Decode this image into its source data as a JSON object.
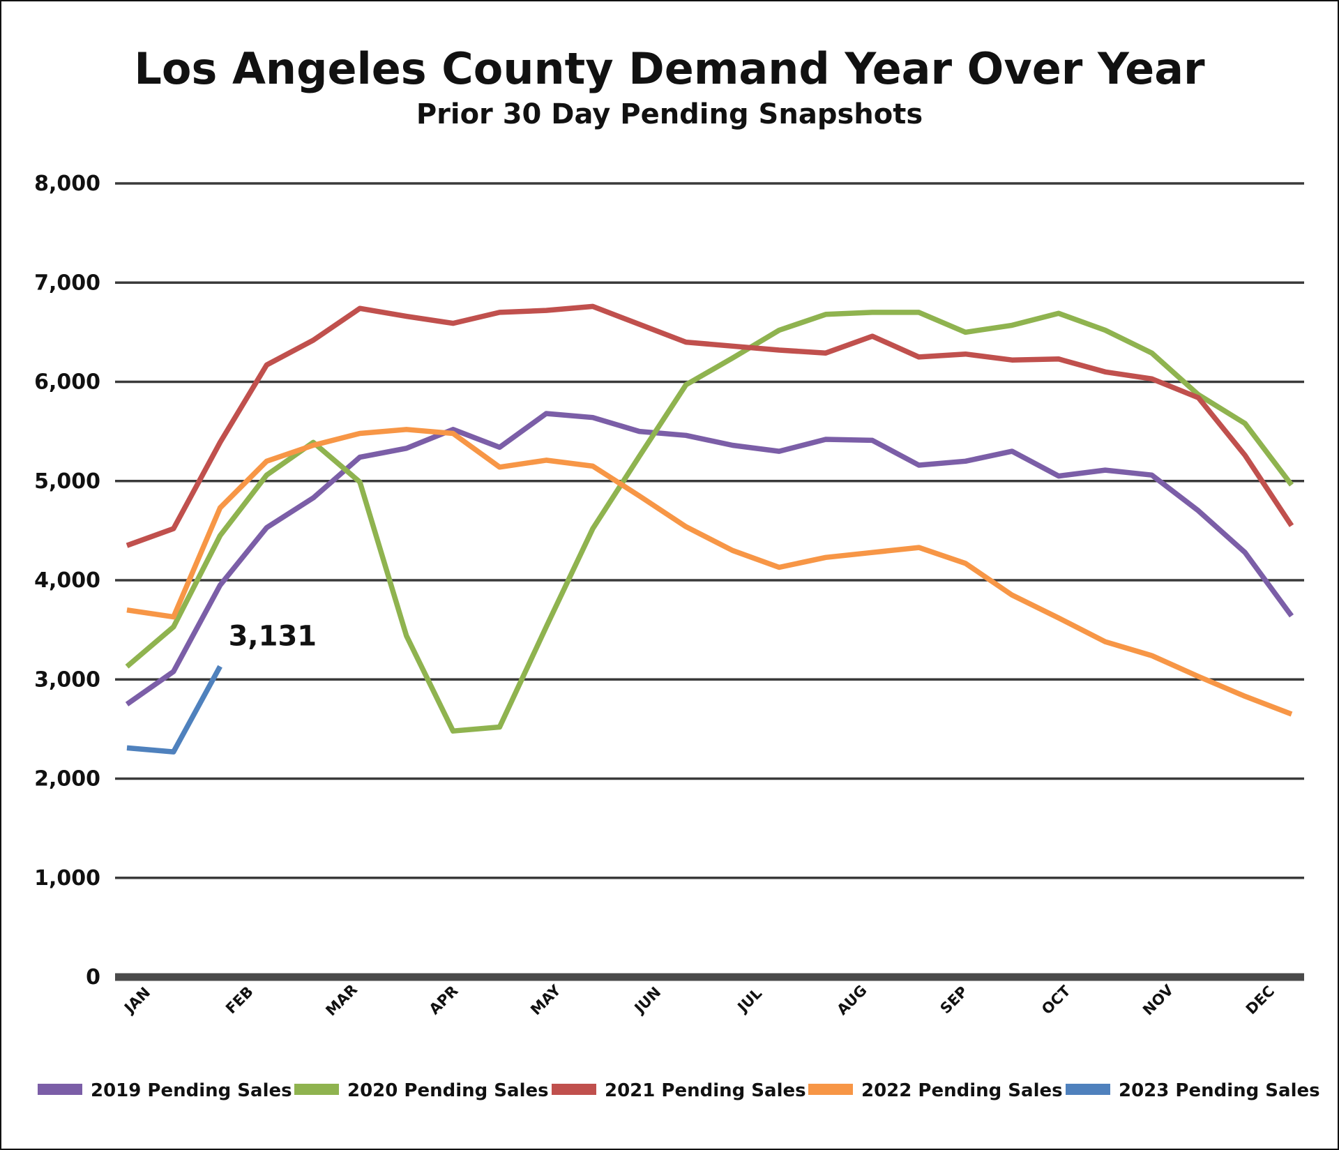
{
  "chart_data": {
    "type": "line",
    "title": "Los Angeles County Demand Year Over Year",
    "subtitle": "Prior 30 Day Pending Snapshots",
    "xlabel": "",
    "ylabel": "",
    "ylim": [
      0,
      8000
    ],
    "y_ticks": [
      0,
      1000,
      2000,
      3000,
      4000,
      5000,
      6000,
      7000,
      8000
    ],
    "y_tick_labels": [
      "0",
      "1,000",
      "2,000",
      "3,000",
      "4,000",
      "5,000",
      "6,000",
      "7,000",
      "8,000"
    ],
    "month_labels": [
      "JAN",
      "FEB",
      "MAR",
      "APR",
      "MAY",
      "JUN",
      "JUL",
      "AUG",
      "SEP",
      "OCT",
      "NOV",
      "DEC"
    ],
    "points_per_year": 26,
    "grid": true,
    "legend_position": "bottom",
    "series": [
      {
        "name": "2019 Pending Sales",
        "color": "#7b5ea7",
        "values": [
          2750,
          3080,
          3950,
          4530,
          4830,
          5240,
          5330,
          5520,
          5340,
          5680,
          5640,
          5500,
          5460,
          5360,
          5300,
          5420,
          5410,
          5160,
          5200,
          5300,
          5050,
          5110,
          5060,
          4700,
          4280,
          3640
        ]
      },
      {
        "name": "2020 Pending Sales",
        "color": "#8fb34f",
        "values": [
          3130,
          3530,
          4450,
          5060,
          5390,
          4990,
          3440,
          2480,
          2520,
          3530,
          4520,
          5250,
          5970,
          6240,
          6520,
          6680,
          6700,
          6700,
          6500,
          6570,
          6690,
          6520,
          6290,
          5870,
          5580,
          4960
        ]
      },
      {
        "name": "2021 Pending Sales",
        "color": "#c0504d",
        "values": [
          4350,
          4520,
          5390,
          6170,
          6420,
          6740,
          6660,
          6590,
          6700,
          6720,
          6760,
          6580,
          6400,
          6360,
          6320,
          6290,
          6460,
          6250,
          6280,
          6220,
          6230,
          6100,
          6030,
          5840,
          5260,
          4550
        ]
      },
      {
        "name": "2022 Pending Sales",
        "color": "#f79646",
        "values": [
          3700,
          3630,
          4730,
          5200,
          5360,
          5480,
          5520,
          5480,
          5140,
          5210,
          5150,
          4850,
          4540,
          4300,
          4130,
          4230,
          4280,
          4330,
          4170,
          3850,
          3620,
          3380,
          3240,
          3030,
          2830,
          2650
        ]
      },
      {
        "name": "2023 Pending Sales",
        "color": "#4f81bd",
        "values": [
          2310,
          2270,
          3131
        ]
      }
    ],
    "annotations": [
      {
        "text": "3,131",
        "series": "2023 Pending Sales",
        "point_index": 2
      }
    ]
  }
}
